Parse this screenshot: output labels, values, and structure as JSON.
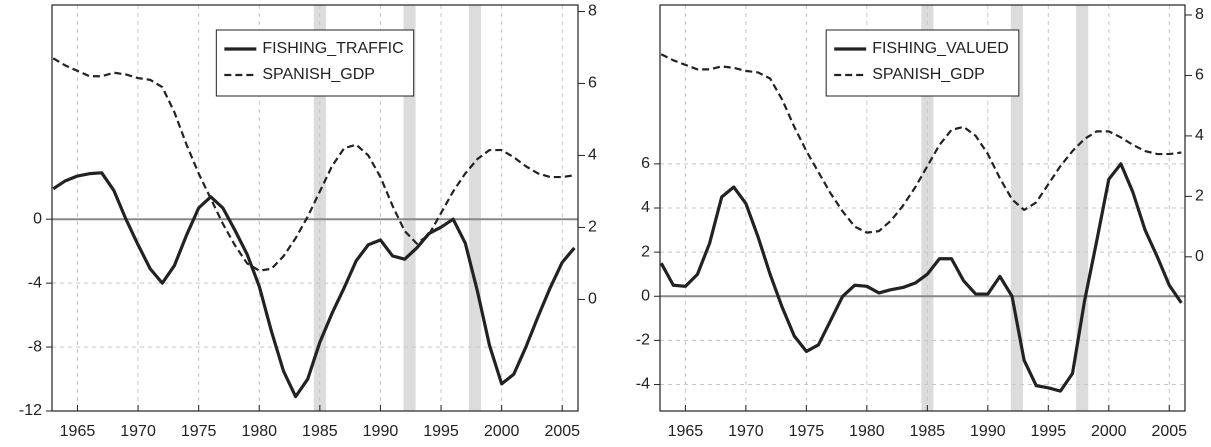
{
  "chart_data": [
    {
      "type": "line",
      "x": [
        1963,
        1964,
        1965,
        1966,
        1967,
        1968,
        1969,
        1970,
        1971,
        1972,
        1973,
        1974,
        1975,
        1976,
        1977,
        1978,
        1979,
        1980,
        1981,
        1982,
        1983,
        1984,
        1985,
        1986,
        1987,
        1988,
        1989,
        1990,
        1991,
        1992,
        1993,
        1994,
        1995,
        1996,
        1997,
        1998,
        1999,
        2000,
        2001,
        2002,
        2003,
        2004,
        2005,
        2006
      ],
      "series": [
        {
          "name": "FISHING_TRAFFIC",
          "color": "#222222",
          "dash": false,
          "axis": "y",
          "values": [
            1.9,
            2.4,
            2.7,
            2.85,
            2.9,
            1.8,
            0,
            -1.6,
            -3.1,
            -4.0,
            -2.9,
            -1.0,
            0.7,
            1.4,
            0.7,
            -0.7,
            -2.2,
            -4.2,
            -7,
            -9.5,
            -11.1,
            -10,
            -7.7,
            -5.9,
            -4.3,
            -2.6,
            -1.6,
            -1.3,
            -2.3,
            -2.5,
            -1.8,
            -0.9,
            -0.5,
            0,
            -1.5,
            -4.5,
            -7.9,
            -10.3,
            -9.7,
            -8,
            -6.1,
            -4.3,
            -2.7,
            -1.8
          ]
        },
        {
          "name": "SPANISH_GDP",
          "color": "#222222",
          "dash": true,
          "axis": "y2",
          "values": [
            6.7,
            6.5,
            6.35,
            6.2,
            6.2,
            6.3,
            6.25,
            6.15,
            6.1,
            5.9,
            5.2,
            4.3,
            3.5,
            2.8,
            2.1,
            1.5,
            1.0,
            0.8,
            0.85,
            1.2,
            1.7,
            2.3,
            3.0,
            3.7,
            4.2,
            4.3,
            4.0,
            3.4,
            2.6,
            1.9,
            1.55,
            1.8,
            2.4,
            3.0,
            3.5,
            3.9,
            4.15,
            4.15,
            3.95,
            3.7,
            3.5,
            3.4,
            3.4,
            3.45
          ]
        }
      ],
      "xlim": [
        1962.9,
        2006.3
      ],
      "xticks": [
        1965,
        1970,
        1975,
        1980,
        1985,
        1990,
        1995,
        2000,
        2005
      ],
      "ylim": [
        -12,
        13.4
      ],
      "yticks": [
        -12,
        -8,
        -4,
        0
      ],
      "y2lim": [
        -3.1,
        8.18
      ],
      "y2ticks": [
        0,
        2,
        4,
        6,
        8
      ],
      "grid": true,
      "legend": "top-center",
      "bands": [
        [
          1984.5,
          1985.5
        ],
        [
          1991.9,
          1992.9
        ],
        [
          1997.3,
          1998.3
        ]
      ],
      "band_color": "#dcdcdc"
    },
    {
      "type": "line",
      "x": [
        1963,
        1964,
        1965,
        1966,
        1967,
        1968,
        1969,
        1970,
        1971,
        1972,
        1973,
        1974,
        1975,
        1976,
        1977,
        1978,
        1979,
        1980,
        1981,
        1982,
        1983,
        1984,
        1985,
        1986,
        1987,
        1988,
        1989,
        1990,
        1991,
        1992,
        1993,
        1994,
        1995,
        1996,
        1997,
        1998,
        1999,
        2000,
        2001,
        2002,
        2003,
        2004,
        2005,
        2006
      ],
      "series": [
        {
          "name": "FISHING_VALUED",
          "color": "#222222",
          "dash": false,
          "axis": "y",
          "values": [
            1.5,
            0.5,
            0.45,
            1.0,
            2.4,
            4.5,
            4.95,
            4.2,
            2.7,
            1.0,
            -0.5,
            -1.8,
            -2.5,
            -2.2,
            -1.1,
            0.0,
            0.5,
            0.45,
            0.15,
            0.3,
            0.4,
            0.6,
            1.0,
            1.7,
            1.7,
            0.7,
            0.1,
            0.1,
            0.9,
            0.0,
            -2.9,
            -4.05,
            -4.15,
            -4.3,
            -3.5,
            -0.2,
            2.5,
            5.3,
            6.0,
            4.7,
            3.0,
            1.8,
            0.5,
            -0.3
          ]
        },
        {
          "name": "SPANISH_GDP",
          "color": "#222222",
          "dash": true,
          "axis": "y2",
          "values": [
            6.7,
            6.5,
            6.35,
            6.2,
            6.2,
            6.3,
            6.25,
            6.15,
            6.1,
            5.9,
            5.2,
            4.3,
            3.5,
            2.8,
            2.1,
            1.5,
            1.0,
            0.8,
            0.85,
            1.2,
            1.7,
            2.3,
            3.0,
            3.7,
            4.2,
            4.3,
            4.0,
            3.4,
            2.6,
            1.9,
            1.55,
            1.8,
            2.4,
            3.0,
            3.5,
            3.9,
            4.15,
            4.15,
            3.95,
            3.7,
            3.5,
            3.4,
            3.4,
            3.45
          ]
        }
      ],
      "xlim": [
        1962.9,
        2006.3
      ],
      "xticks": [
        1965,
        1970,
        1975,
        1980,
        1985,
        1990,
        1995,
        2000,
        2005
      ],
      "ylim": [
        -5.2,
        13.2
      ],
      "yticks": [
        -4,
        -2,
        0,
        2,
        4,
        6
      ],
      "y2lim": [
        -5.1,
        8.33
      ],
      "y2ticks": [
        0,
        2,
        4,
        6,
        8
      ],
      "grid": true,
      "legend": "top-center",
      "bands": [
        [
          1984.5,
          1985.5
        ],
        [
          1991.9,
          1992.9
        ],
        [
          1997.3,
          1998.3
        ]
      ],
      "band_color": "#dcdcdc"
    }
  ]
}
